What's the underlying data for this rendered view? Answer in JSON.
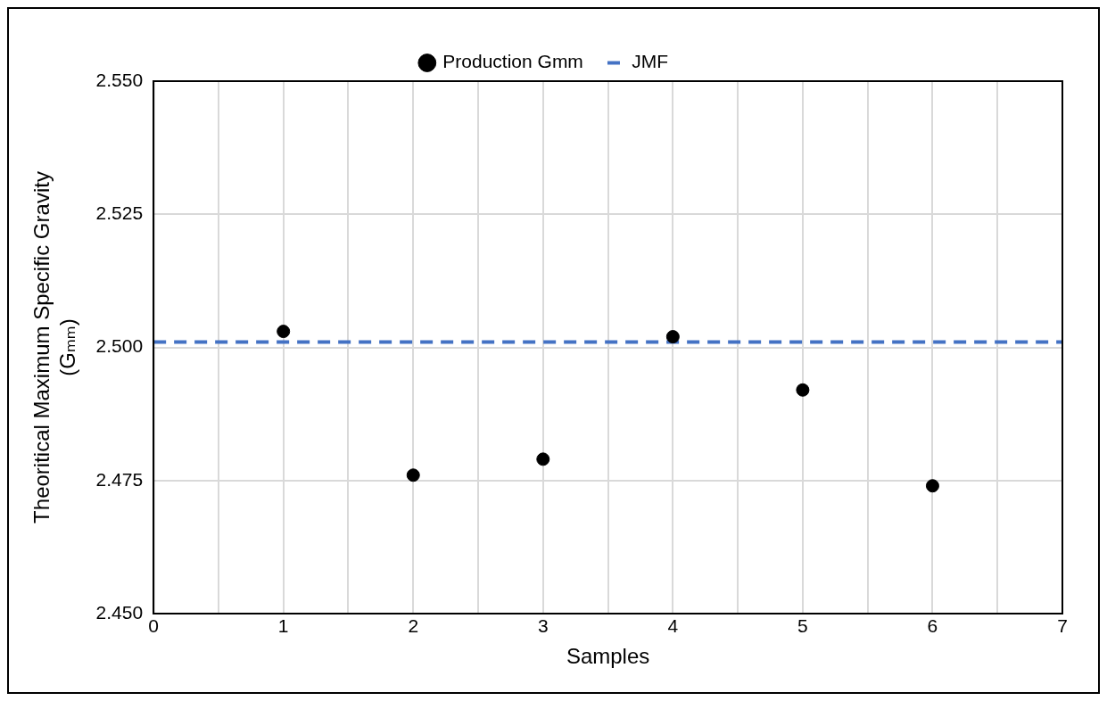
{
  "chart_data": {
    "type": "scatter",
    "xlabel": "Samples",
    "ylabel": [
      "Theoritical Maximum Specific Gravity",
      "(Gₘₘ)"
    ],
    "x": [
      1,
      2,
      3,
      4,
      5,
      6
    ],
    "series": [
      {
        "name": "Production Gmm",
        "color": "#000000",
        "marker": "circle",
        "values": [
          2.503,
          2.476,
          2.479,
          2.502,
          2.492,
          2.474
        ]
      },
      {
        "name": "JMF",
        "type": "line",
        "color": "#4472c4",
        "line_style": "dashed",
        "marker": "none",
        "x": [
          0,
          7
        ],
        "values": [
          2.501,
          2.501
        ]
      }
    ],
    "xlim": [
      0,
      7
    ],
    "xticks": [
      0,
      {
        "value": 0.5,
        "label": null
      },
      1,
      {
        "value": 1.5,
        "label": null
      },
      2,
      {
        "value": 2.5,
        "label": null
      },
      3,
      {
        "value": 3.5,
        "label": null
      },
      4,
      {
        "value": 4.5,
        "label": null
      },
      5,
      {
        "value": 5.5,
        "label": null
      },
      6,
      {
        "value": 6.5,
        "label": null
      },
      7
    ],
    "ylim": [
      2.45,
      2.55
    ],
    "yticks": [
      {
        "value": 2.45,
        "label": "2.450"
      },
      {
        "value": 2.475,
        "label": "2.475"
      },
      {
        "value": 2.5,
        "label": "2.500"
      },
      {
        "value": 2.525,
        "label": "2.525"
      },
      {
        "value": 2.55,
        "label": "2.550"
      }
    ],
    "grid": true,
    "legend": "top"
  }
}
